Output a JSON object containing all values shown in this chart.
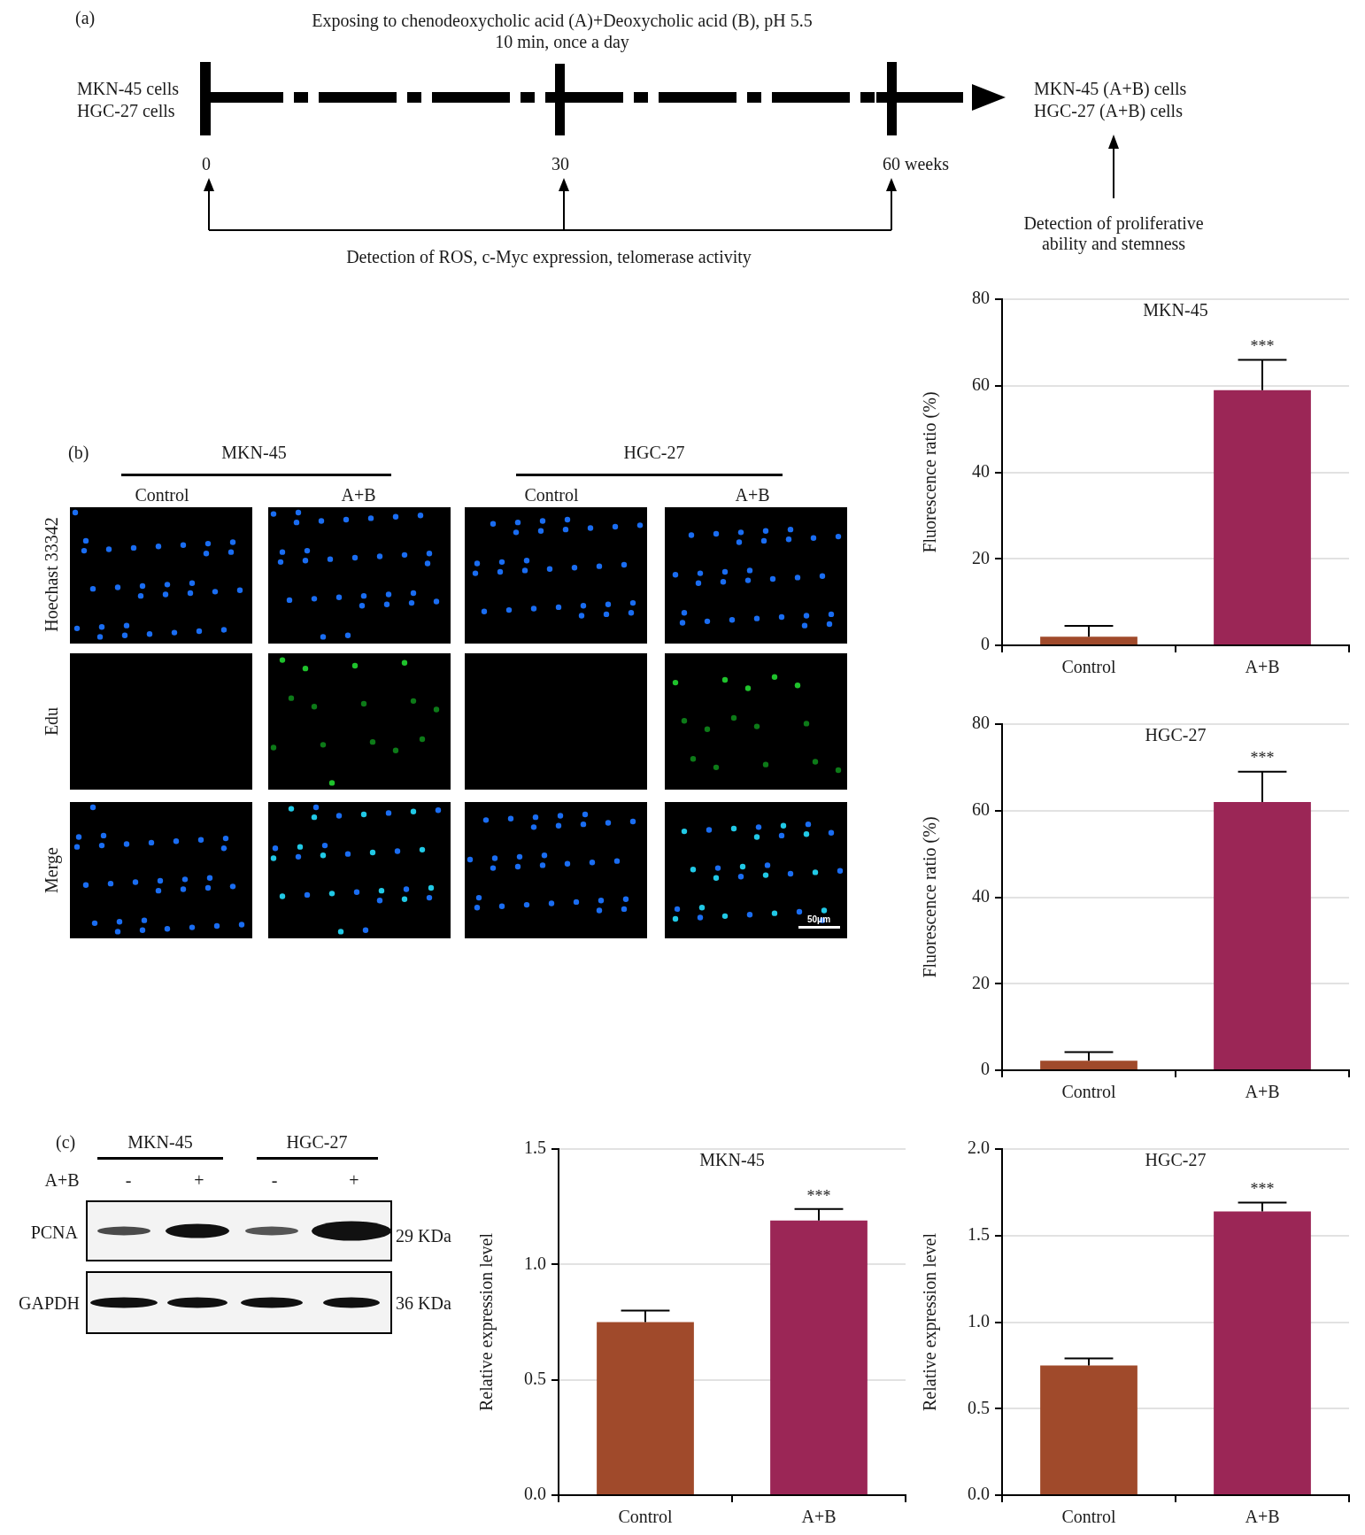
{
  "chart_data": [
    {
      "type": "other",
      "annotations": [
        "(a)",
        "Exposing to chenodeoxycholic acid (A)+Deoxycholic acid (B), pH 5.5",
        "10 min, once a day",
        "MKN-45 cells",
        "HGC-27 cells",
        "0",
        "30",
        "60 weeks",
        "MKN-45 (A+B) cells",
        "HGC-27 (A+B) cells",
        "Detection of ROS, c-Myc expression, telomerase activity",
        "Detection of proliferative ability and stemness"
      ]
    },
    {
      "type": "other",
      "annotations": [
        "(b)",
        "MKN-45",
        "HGC-27",
        "Control",
        "A+B",
        "Control",
        "A+B",
        "Hoechast 33342",
        "Edu",
        "Merge",
        "50μm"
      ]
    },
    {
      "type": "bar",
      "title": "MKN-45",
      "ylabel": "Fluorescence ratio (%)",
      "categories": [
        "Control",
        "A+B"
      ],
      "values": [
        2,
        59
      ],
      "colors": [
        "#a04a2b",
        "#9b2656"
      ],
      "errors": [
        [
          2,
          4.5
        ],
        [
          59,
          66
        ]
      ],
      "ylim": [
        0,
        80
      ],
      "yticks": [
        0,
        20,
        40,
        60,
        80
      ],
      "grid": "y",
      "annotations": [
        "***"
      ]
    },
    {
      "type": "bar",
      "title": "HGC-27",
      "ylabel": "Fluorescence ratio (%)",
      "categories": [
        "Control",
        "A+B"
      ],
      "values": [
        2.2,
        62
      ],
      "colors": [
        "#a04a2b",
        "#9b2656"
      ],
      "errors": [
        [
          2.2,
          4.2
        ],
        [
          62,
          69
        ]
      ],
      "ylim": [
        0,
        80
      ],
      "yticks": [
        0,
        20,
        40,
        60,
        80
      ],
      "grid": "y",
      "annotations": [
        "***"
      ]
    },
    {
      "type": "other",
      "annotations": [
        "(c)",
        "MKN-45",
        "HGC-27",
        "A+B",
        "-",
        "+",
        "-",
        "+",
        "PCNA",
        "GAPDH",
        "29 KDa",
        "36 KDa"
      ]
    },
    {
      "type": "bar",
      "title": "MKN-45",
      "ylabel": "Relative expression level",
      "categories": [
        "Control",
        "A+B"
      ],
      "values": [
        0.75,
        1.19
      ],
      "colors": [
        "#a04a2b",
        "#9b2656"
      ],
      "errors": [
        [
          0.75,
          0.8
        ],
        [
          1.19,
          1.24
        ]
      ],
      "ylim": [
        0,
        1.5
      ],
      "yticks": [
        {
          "value": 0,
          "label": "0.0"
        },
        0.5,
        {
          "value": 1,
          "label": "1.0"
        },
        1.5
      ],
      "grid": "y",
      "annotations": [
        "***"
      ]
    },
    {
      "type": "bar",
      "title": "HGC-27",
      "ylabel": "Relative expression level",
      "categories": [
        "Control",
        "A+B"
      ],
      "values": [
        0.75,
        1.64
      ],
      "colors": [
        "#a04a2b",
        "#9b2656"
      ],
      "errors": [
        [
          0.75,
          0.79
        ],
        [
          1.64,
          1.69
        ]
      ],
      "ylim": [
        0,
        2
      ],
      "yticks": [
        {
          "value": 0,
          "label": "0.0"
        },
        0.5,
        {
          "value": 1,
          "label": "1.0"
        },
        1.5,
        {
          "value": 2,
          "label": "2.0"
        }
      ],
      "grid": "y",
      "annotations": [
        "***"
      ]
    }
  ]
}
